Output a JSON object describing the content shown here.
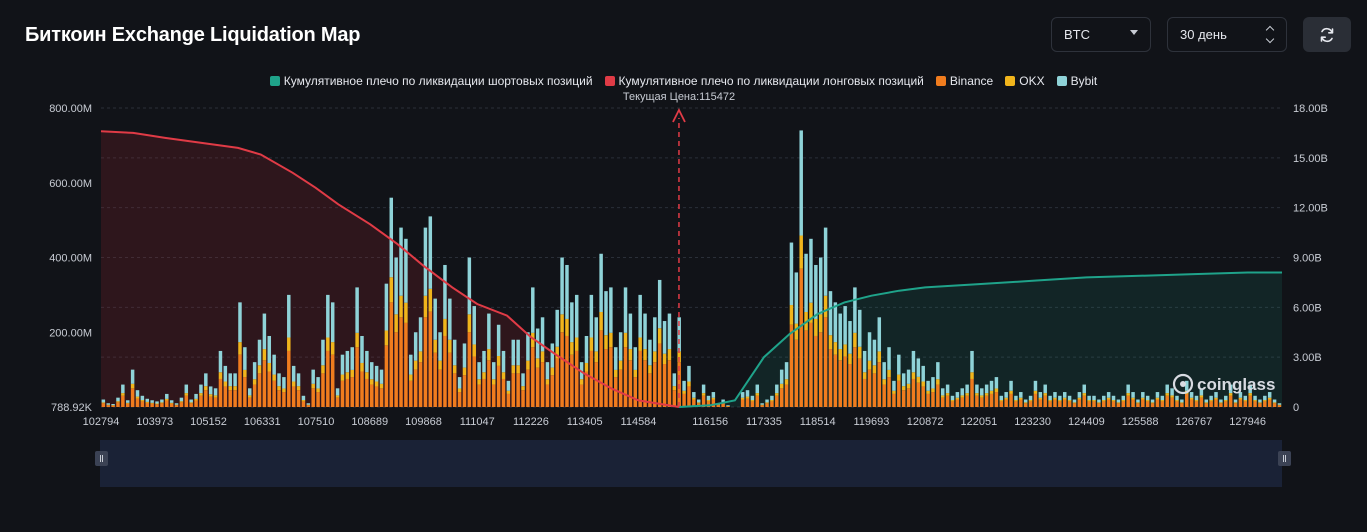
{
  "header": {
    "title": "Биткоин Exchange Liquidation Map",
    "coin_select": "BTC",
    "period_select": "30 день"
  },
  "legend": {
    "short": "Кумулятивное плечо по ликвидации шортовых позиций",
    "long": "Кумулятивное плечо по ликвидации лонговых позиций",
    "binance": "Binance",
    "okx": "OKX",
    "bybit": "Bybit"
  },
  "watermark": "coinglass",
  "colors": {
    "short": "#1fa38a",
    "long": "#e03b46",
    "binance": "#f07c1e",
    "okx": "#f1b51c",
    "bybit": "#8fd3d8",
    "background": "#111318"
  },
  "chart_data": {
    "type": "bar",
    "current_price_label": "Текущая Цена:115472",
    "current_price": 115472,
    "x_ticks": [
      "102794",
      "103973",
      "105152",
      "106331",
      "107510",
      "108689",
      "109868",
      "111047",
      "112226",
      "113405",
      "114584",
      "116156",
      "117335",
      "118514",
      "119693",
      "120872",
      "122051",
      "123230",
      "124409",
      "125588",
      "126767",
      "127946"
    ],
    "x_range": [
      102794,
      128700
    ],
    "y_left_ticks": [
      "788.92K",
      "200.00M",
      "400.00M",
      "600.00M",
      "800.00M"
    ],
    "y_left_range": [
      0,
      800
    ],
    "y_left_unit": "M",
    "y_right_ticks": [
      "0",
      "3.00B",
      "6.00B",
      "9.00B",
      "12.00B",
      "15.00B",
      "18.00B"
    ],
    "y_right_range": [
      0,
      18
    ],
    "y_right_unit": "B",
    "bars_total_M": [
      20,
      10,
      8,
      25,
      60,
      18,
      100,
      45,
      30,
      22,
      18,
      15,
      20,
      35,
      18,
      10,
      25,
      60,
      20,
      35,
      60,
      90,
      55,
      50,
      150,
      110,
      90,
      90,
      280,
      160,
      50,
      120,
      180,
      250,
      190,
      140,
      90,
      80,
      300,
      110,
      90,
      30,
      10,
      100,
      80,
      180,
      300,
      280,
      50,
      140,
      150,
      160,
      320,
      190,
      150,
      120,
      110,
      100,
      330,
      560,
      400,
      480,
      450,
      140,
      200,
      240,
      480,
      510,
      290,
      200,
      380,
      290,
      180,
      80,
      170,
      400,
      270,
      120,
      150,
      250,
      120,
      220,
      150,
      70,
      180,
      180,
      90,
      200,
      320,
      210,
      240,
      120,
      170,
      260,
      400,
      380,
      280,
      300,
      120,
      190,
      300,
      240,
      410,
      310,
      320,
      160,
      200,
      320,
      250,
      160,
      300,
      250,
      180,
      240,
      340,
      230,
      250,
      90,
      240,
      70,
      110,
      40,
      20,
      60,
      30,
      40,
      10,
      20,
      5,
      0,
      0,
      40,
      45,
      30,
      60,
      10,
      20,
      30,
      60,
      100,
      120,
      440,
      360,
      740,
      410,
      450,
      380,
      400,
      480,
      310,
      280,
      250,
      270,
      230,
      320,
      260,
      150,
      200,
      180,
      240,
      120,
      160,
      70,
      140,
      90,
      100,
      150,
      130,
      110,
      70,
      80,
      120,
      50,
      60,
      30,
      40,
      50,
      60,
      150,
      60,
      50,
      60,
      70,
      80,
      30,
      40,
      70,
      30,
      40,
      20,
      30,
      70,
      40,
      60,
      30,
      40,
      30,
      40,
      30,
      20,
      40,
      60,
      30,
      30,
      20,
      30,
      40,
      30,
      20,
      30,
      60,
      40,
      20,
      40,
      30,
      20,
      40,
      30,
      60,
      50,
      30,
      20,
      70,
      40,
      30,
      50,
      20,
      30,
      40,
      20,
      30,
      60,
      20,
      40,
      30,
      60,
      30,
      20,
      30,
      40,
      20,
      10
    ],
    "long_cumulative_B": [
      [
        102794,
        16.6
      ],
      [
        103500,
        16.5
      ],
      [
        104200,
        16.2
      ],
      [
        105000,
        15.9
      ],
      [
        105800,
        15.6
      ],
      [
        106300,
        15.2
      ],
      [
        107000,
        14.1
      ],
      [
        107500,
        13.2
      ],
      [
        108000,
        12.2
      ],
      [
        108700,
        11.0
      ],
      [
        109300,
        9.8
      ],
      [
        109868,
        8.5
      ],
      [
        110500,
        7.2
      ],
      [
        111047,
        6.2
      ],
      [
        111700,
        5.5
      ],
      [
        112226,
        4.2
      ],
      [
        112800,
        3.1
      ],
      [
        113405,
        2.0
      ],
      [
        114000,
        1.1
      ],
      [
        114584,
        0.4
      ],
      [
        115472,
        0.0
      ]
    ],
    "short_cumulative_B": [
      [
        115472,
        0.0
      ],
      [
        116156,
        0.1
      ],
      [
        116700,
        0.4
      ],
      [
        117335,
        3.0
      ],
      [
        117900,
        4.4
      ],
      [
        118514,
        5.6
      ],
      [
        119100,
        6.3
      ],
      [
        119693,
        6.7
      ],
      [
        120300,
        7.0
      ],
      [
        120872,
        7.2
      ],
      [
        122051,
        7.4
      ],
      [
        123230,
        7.6
      ],
      [
        124409,
        7.8
      ],
      [
        125588,
        7.9
      ],
      [
        126767,
        8.0
      ],
      [
        127946,
        8.1
      ],
      [
        128700,
        8.1
      ]
    ]
  }
}
